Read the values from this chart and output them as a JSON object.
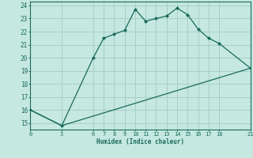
{
  "xlabel": "Humidex (Indice chaleur)",
  "bg_color": "#c5e8e0",
  "grid_color": "#a8cfc8",
  "line_color": "#1a6b5a",
  "xlim": [
    0,
    21
  ],
  "ylim": [
    14.5,
    24.3
  ],
  "xticks": [
    0,
    3,
    6,
    7,
    8,
    9,
    10,
    11,
    12,
    13,
    14,
    15,
    16,
    17,
    18,
    21
  ],
  "yticks": [
    15,
    16,
    17,
    18,
    19,
    20,
    21,
    22,
    23,
    24
  ],
  "upper_line_x": [
    0,
    3,
    6,
    7,
    8,
    9,
    10,
    11,
    12,
    13,
    14,
    15,
    16,
    17,
    18,
    21
  ],
  "upper_line_y": [
    16.0,
    14.8,
    20.0,
    21.5,
    21.8,
    22.1,
    23.7,
    22.8,
    23.0,
    23.2,
    23.8,
    23.3,
    22.2,
    21.5,
    21.1,
    19.2
  ],
  "lower_line_x": [
    0,
    3,
    21
  ],
  "lower_line_y": [
    16.0,
    14.8,
    19.2
  ]
}
